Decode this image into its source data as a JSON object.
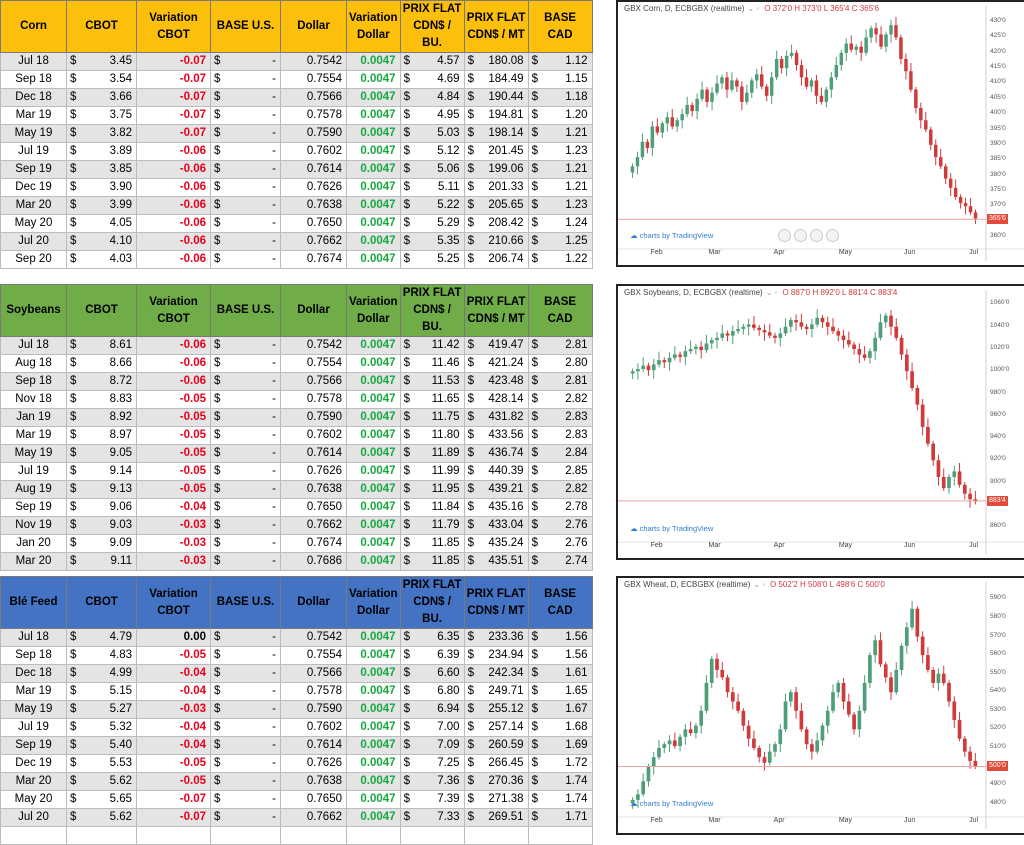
{
  "sections": [
    {
      "header": {
        "name": "Corn",
        "cbot": "CBOT",
        "variation": "Variation CBOT",
        "base_us": "BASE U.S.",
        "dollar": "Dollar",
        "variation_dollar": "Variation Dollar",
        "prix_bu": "PRIX FLAT CDN$ / BU.",
        "prix_mt": "PRIX FLAT CDN$ / MT",
        "base_cad": "BASE CAD"
      },
      "rows": [
        [
          "Jul 18",
          "$",
          "3.45",
          "-0.07",
          "$",
          "-",
          "0.7542",
          "0.0047",
          "$",
          "4.57",
          "$",
          "180.08",
          "$",
          "1.12"
        ],
        [
          "Sep 18",
          "$",
          "3.54",
          "-0.07",
          "$",
          "-",
          "0.7554",
          "0.0047",
          "$",
          "4.69",
          "$",
          "184.49",
          "$",
          "1.15"
        ],
        [
          "Dec 18",
          "$",
          "3.66",
          "-0.07",
          "$",
          "-",
          "0.7566",
          "0.0047",
          "$",
          "4.84",
          "$",
          "190.44",
          "$",
          "1.18"
        ],
        [
          "Mar 19",
          "$",
          "3.75",
          "-0.07",
          "$",
          "-",
          "0.7578",
          "0.0047",
          "$",
          "4.95",
          "$",
          "194.81",
          "$",
          "1.20"
        ],
        [
          "May 19",
          "$",
          "3.82",
          "-0.07",
          "$",
          "-",
          "0.7590",
          "0.0047",
          "$",
          "5.03",
          "$",
          "198.14",
          "$",
          "1.21"
        ],
        [
          "Jul 19",
          "$",
          "3.89",
          "-0.06",
          "$",
          "-",
          "0.7602",
          "0.0047",
          "$",
          "5.12",
          "$",
          "201.45",
          "$",
          "1.23"
        ],
        [
          "Sep 19",
          "$",
          "3.85",
          "-0.06",
          "$",
          "-",
          "0.7614",
          "0.0047",
          "$",
          "5.06",
          "$",
          "199.06",
          "$",
          "1.21"
        ],
        [
          "Dec 19",
          "$",
          "3.90",
          "-0.06",
          "$",
          "-",
          "0.7626",
          "0.0047",
          "$",
          "5.11",
          "$",
          "201.33",
          "$",
          "1.21"
        ],
        [
          "Mar 20",
          "$",
          "3.99",
          "-0.06",
          "$",
          "-",
          "0.7638",
          "0.0047",
          "$",
          "5.22",
          "$",
          "205.65",
          "$",
          "1.23"
        ],
        [
          "May 20",
          "$",
          "4.05",
          "-0.06",
          "$",
          "-",
          "0.7650",
          "0.0047",
          "$",
          "5.29",
          "$",
          "208.42",
          "$",
          "1.24"
        ],
        [
          "Jul 20",
          "$",
          "4.10",
          "-0.06",
          "$",
          "-",
          "0.7662",
          "0.0047",
          "$",
          "5.35",
          "$",
          "210.66",
          "$",
          "1.25"
        ],
        [
          "Sep 20",
          "$",
          "4.03",
          "-0.06",
          "$",
          "-",
          "0.7674",
          "0.0047",
          "$",
          "5.25",
          "$",
          "206.74",
          "$",
          "1.22"
        ]
      ],
      "chart": {
        "title": "GBX Corn, D, ECBGBX (realtime)",
        "ohlc": "O 372'0 H 373'0 L 365'4 C 365'6",
        "price_tag": "365'6",
        "y_ticks": [
          "430'0",
          "425'0",
          "420'0",
          "415'0",
          "410'0",
          "405'0",
          "400'0",
          "395'0",
          "390'0",
          "385'0",
          "380'0",
          "375'0",
          "370'0",
          "365'0",
          "360'0"
        ],
        "x_ticks": [
          "Feb",
          "Mar",
          "Apr",
          "May",
          "Jun",
          "Jul"
        ],
        "logo": "charts by TradingView",
        "last_price": 365.75,
        "series": [
          383,
          386,
          391,
          389,
          396,
          394,
          397,
          399,
          396,
          398,
          400,
          403,
          401,
          405,
          408,
          404,
          407,
          410,
          412,
          408,
          411,
          409,
          404,
          407,
          411,
          413,
          409,
          406,
          412,
          418,
          415,
          419,
          420,
          416,
          412,
          409,
          411,
          406,
          404,
          408,
          412,
          416,
          420,
          423,
          421,
          422,
          420,
          425,
          428,
          426,
          422,
          426,
          429,
          425,
          418,
          414,
          408,
          402,
          398,
          395,
          390,
          386,
          383,
          379,
          376,
          373,
          371,
          370,
          368,
          366
        ]
      }
    },
    {
      "header": {
        "name": "Soybeans",
        "cbot": "CBOT",
        "variation": "Variation CBOT",
        "base_us": "BASE U.S.",
        "dollar": "Dollar",
        "variation_dollar": "Variation Dollar",
        "prix_bu": "PRIX FLAT CDN$ / BU.",
        "prix_mt": "PRIX FLAT CDN$ / MT",
        "base_cad": "BASE CAD"
      },
      "rows": [
        [
          "Jul 18",
          "$",
          "8.61",
          "-0.06",
          "$",
          "-",
          "0.7542",
          "0.0047",
          "$",
          "11.42",
          "$",
          "419.47",
          "$",
          "2.81"
        ],
        [
          "Aug 18",
          "$",
          "8.66",
          "-0.06",
          "$",
          "-",
          "0.7554",
          "0.0047",
          "$",
          "11.46",
          "$",
          "421.24",
          "$",
          "2.80"
        ],
        [
          "Sep 18",
          "$",
          "8.72",
          "-0.06",
          "$",
          "-",
          "0.7566",
          "0.0047",
          "$",
          "11.53",
          "$",
          "423.48",
          "$",
          "2.81"
        ],
        [
          "Nov 18",
          "$",
          "8.83",
          "-0.05",
          "$",
          "-",
          "0.7578",
          "0.0047",
          "$",
          "11.65",
          "$",
          "428.14",
          "$",
          "2.82"
        ],
        [
          "Jan 19",
          "$",
          "8.92",
          "-0.05",
          "$",
          "-",
          "0.7590",
          "0.0047",
          "$",
          "11.75",
          "$",
          "431.82",
          "$",
          "2.83"
        ],
        [
          "Mar 19",
          "$",
          "8.97",
          "-0.05",
          "$",
          "-",
          "0.7602",
          "0.0047",
          "$",
          "11.80",
          "$",
          "433.56",
          "$",
          "2.83"
        ],
        [
          "May 19",
          "$",
          "9.05",
          "-0.05",
          "$",
          "-",
          "0.7614",
          "0.0047",
          "$",
          "11.89",
          "$",
          "436.74",
          "$",
          "2.84"
        ],
        [
          "Jul 19",
          "$",
          "9.14",
          "-0.05",
          "$",
          "-",
          "0.7626",
          "0.0047",
          "$",
          "11.99",
          "$",
          "440.39",
          "$",
          "2.85"
        ],
        [
          "Aug 19",
          "$",
          "9.13",
          "-0.05",
          "$",
          "-",
          "0.7638",
          "0.0047",
          "$",
          "11.95",
          "$",
          "439.21",
          "$",
          "2.82"
        ],
        [
          "Sep 19",
          "$",
          "9.06",
          "-0.04",
          "$",
          "-",
          "0.7650",
          "0.0047",
          "$",
          "11.84",
          "$",
          "435.16",
          "$",
          "2.78"
        ],
        [
          "Nov 19",
          "$",
          "9.03",
          "-0.03",
          "$",
          "-",
          "0.7662",
          "0.0047",
          "$",
          "11.79",
          "$",
          "433.04",
          "$",
          "2.76"
        ],
        [
          "Jan 20",
          "$",
          "9.09",
          "-0.03",
          "$",
          "-",
          "0.7674",
          "0.0047",
          "$",
          "11.85",
          "$",
          "435.24",
          "$",
          "2.76"
        ],
        [
          "Mar 20",
          "$",
          "9.11",
          "-0.03",
          "$",
          "-",
          "0.7686",
          "0.0047",
          "$",
          "11.85",
          "$",
          "435.51",
          "$",
          "2.74"
        ]
      ],
      "chart": {
        "title": "GBX Soybeans, D, ECBGBX (realtime)",
        "ohlc": "O 887'0 H 892'0 L 881'4 C 883'4",
        "price_tag": "883'4",
        "y_ticks": [
          "1060'0",
          "1040'0",
          "1020'0",
          "1000'0",
          "980'0",
          "960'0",
          "940'0",
          "920'0",
          "900'0",
          "880'0",
          "860'0"
        ],
        "x_ticks": [
          "Feb",
          "Mar",
          "Apr",
          "May",
          "Jun",
          "Jul"
        ],
        "logo": "charts by TradingView",
        "last_price": 883.5,
        "series": [
          1000,
          1002,
          1005,
          1001,
          1006,
          1010,
          1008,
          1012,
          1015,
          1013,
          1018,
          1020,
          1022,
          1019,
          1025,
          1028,
          1030,
          1034,
          1032,
          1036,
          1038,
          1040,
          1042,
          1039,
          1037,
          1035,
          1032,
          1030,
          1034,
          1040,
          1046,
          1044,
          1040,
          1038,
          1042,
          1048,
          1044,
          1040,
          1036,
          1032,
          1028,
          1024,
          1020,
          1015,
          1012,
          1018,
          1030,
          1044,
          1050,
          1040,
          1030,
          1015,
          1000,
          985,
          970,
          950,
          935,
          920,
          905,
          895,
          905,
          910,
          898,
          890,
          885,
          883
        ]
      }
    },
    {
      "header": {
        "name": "Blé Feed",
        "cbot": "CBOT",
        "variation": "Variation CBOT",
        "base_us": "BASE U.S.",
        "dollar": "Dollar",
        "variation_dollar": "Variation Dollar",
        "prix_bu": "PRIX FLAT CDN$ / BU.",
        "prix_mt": "PRIX FLAT CDN$ / MT",
        "base_cad": "BASE CAD"
      },
      "rows": [
        [
          "Jul 18",
          "$",
          "4.79",
          "0.00",
          "$",
          "-",
          "0.7542",
          "0.0047",
          "$",
          "6.35",
          "$",
          "233.36",
          "$",
          "1.56"
        ],
        [
          "Sep 18",
          "$",
          "4.83",
          "-0.05",
          "$",
          "-",
          "0.7554",
          "0.0047",
          "$",
          "6.39",
          "$",
          "234.94",
          "$",
          "1.56"
        ],
        [
          "Dec 18",
          "$",
          "4.99",
          "-0.04",
          "$",
          "-",
          "0.7566",
          "0.0047",
          "$",
          "6.60",
          "$",
          "242.34",
          "$",
          "1.61"
        ],
        [
          "Mar 19",
          "$",
          "5.15",
          "-0.04",
          "$",
          "-",
          "0.7578",
          "0.0047",
          "$",
          "6.80",
          "$",
          "249.71",
          "$",
          "1.65"
        ],
        [
          "May 19",
          "$",
          "5.27",
          "-0.03",
          "$",
          "-",
          "0.7590",
          "0.0047",
          "$",
          "6.94",
          "$",
          "255.12",
          "$",
          "1.67"
        ],
        [
          "Jul 19",
          "$",
          "5.32",
          "-0.04",
          "$",
          "-",
          "0.7602",
          "0.0047",
          "$",
          "7.00",
          "$",
          "257.14",
          "$",
          "1.68"
        ],
        [
          "Sep 19",
          "$",
          "5.40",
          "-0.04",
          "$",
          "-",
          "0.7614",
          "0.0047",
          "$",
          "7.09",
          "$",
          "260.59",
          "$",
          "1.69"
        ],
        [
          "Dec 19",
          "$",
          "5.53",
          "-0.05",
          "$",
          "-",
          "0.7626",
          "0.0047",
          "$",
          "7.25",
          "$",
          "266.45",
          "$",
          "1.72"
        ],
        [
          "Mar 20",
          "$",
          "5.62",
          "-0.05",
          "$",
          "-",
          "0.7638",
          "0.0047",
          "$",
          "7.36",
          "$",
          "270.36",
          "$",
          "1.74"
        ],
        [
          "May 20",
          "$",
          "5.65",
          "-0.07",
          "$",
          "-",
          "0.7650",
          "0.0047",
          "$",
          "7.39",
          "$",
          "271.38",
          "$",
          "1.74"
        ],
        [
          "Jul 20",
          "$",
          "5.62",
          "-0.07",
          "$",
          "-",
          "0.7662",
          "0.0047",
          "$",
          "7.33",
          "$",
          "269.51",
          "$",
          "1.71"
        ],
        [
          "",
          "",
          "",
          "",
          "",
          "",
          "",
          "",
          "",
          "",
          "",
          "",
          "",
          ""
        ]
      ],
      "chart": {
        "title": "GBX Wheat, D, ECBGBX (realtime)",
        "ohlc": "O 502'2 H 508'0 L 498'6 C 500'0",
        "price_tag": "500'0",
        "y_ticks": [
          "590'0",
          "580'0",
          "570'0",
          "560'0",
          "550'0",
          "540'0",
          "530'0",
          "520'0",
          "510'0",
          "500'0",
          "490'0",
          "480'0"
        ],
        "x_ticks": [
          "Feb",
          "Mar",
          "Apr",
          "May",
          "Jun",
          "Jul"
        ],
        "logo": "charts by TradingView",
        "last_price": 500,
        "series": [
          482,
          485,
          492,
          500,
          505,
          510,
          512,
          514,
          511,
          516,
          520,
          518,
          522,
          530,
          545,
          558,
          552,
          548,
          540,
          535,
          530,
          522,
          515,
          510,
          505,
          502,
          508,
          512,
          520,
          535,
          540,
          530,
          520,
          512,
          508,
          514,
          522,
          530,
          540,
          545,
          535,
          528,
          520,
          530,
          545,
          560,
          568,
          555,
          548,
          540,
          552,
          565,
          575,
          585,
          570,
          560,
          552,
          545,
          550,
          545,
          535,
          525,
          515,
          508,
          503,
          500
        ]
      }
    }
  ],
  "colors": {
    "corn_header": "#fbbf0c",
    "soy_header": "#70ac47",
    "wheat_header": "#4473c4",
    "negative": "#e8001c",
    "positive": "#18a840",
    "candle_up": "#4e9e79",
    "candle_down": "#cf3a3a"
  }
}
